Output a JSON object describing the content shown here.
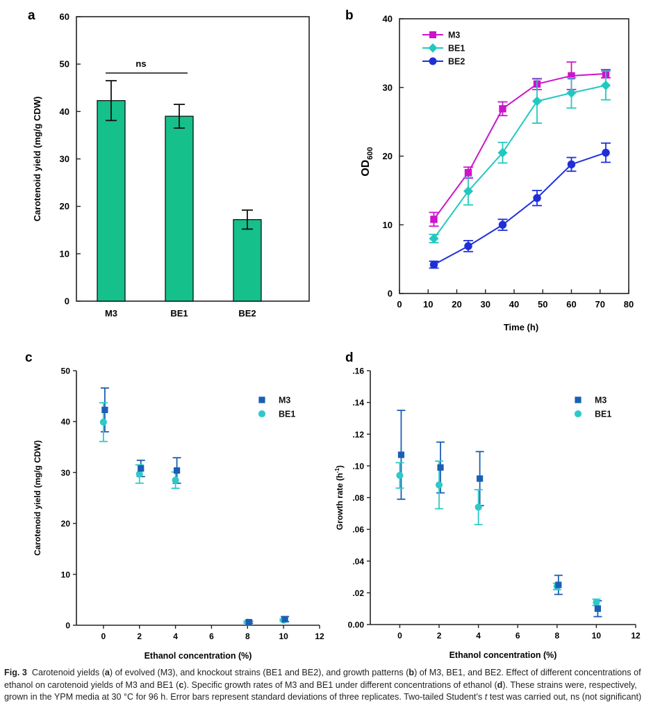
{
  "chart_data": [
    {
      "panel": "a",
      "type": "bar",
      "categories": [
        "M3",
        "BE1",
        "BE2"
      ],
      "values": [
        42.3,
        39.0,
        17.2
      ],
      "errors": [
        4.2,
        2.5,
        2.0
      ],
      "ylabel": "Carotenoid yield (mg/g CDW)",
      "ylim": [
        0,
        60
      ],
      "yticks": [
        "0",
        "10",
        "20",
        "30",
        "40",
        "50",
        "60"
      ],
      "bar_color": "#16c08a",
      "annotation": "ns"
    },
    {
      "panel": "b",
      "type": "line",
      "x": [
        12,
        24,
        36,
        48,
        60,
        72
      ],
      "series": [
        {
          "name": "M3",
          "marker": "square",
          "color": "#cc14cc",
          "values": [
            10.8,
            17.6,
            26.9,
            30.5,
            31.7,
            32.0
          ],
          "errors": [
            1.0,
            0.8,
            1.0,
            0.8,
            2.0,
            0.6
          ]
        },
        {
          "name": "BE1",
          "marker": "diamond",
          "color": "#22c8c0",
          "values": [
            8.0,
            14.9,
            20.5,
            28.0,
            29.2,
            30.3
          ],
          "errors": [
            0.6,
            2.0,
            1.5,
            3.2,
            2.2,
            2.1
          ]
        },
        {
          "name": "BE2",
          "marker": "circle",
          "color": "#1f2fd8",
          "values": [
            4.2,
            6.9,
            10.0,
            13.9,
            18.8,
            20.5
          ],
          "errors": [
            0.5,
            0.8,
            0.8,
            1.1,
            1.0,
            1.4
          ]
        }
      ],
      "xlabel": "Time (h)",
      "ylabel": "OD",
      "ylabel_sub": "600",
      "xlim": [
        0,
        80
      ],
      "ylim": [
        0,
        40
      ],
      "xticks": [
        "0",
        "10",
        "20",
        "30",
        "40",
        "50",
        "60",
        "70",
        "80"
      ],
      "yticks": [
        "0",
        "10",
        "20",
        "30",
        "40"
      ],
      "legend": "top-left"
    },
    {
      "panel": "c",
      "type": "scatter",
      "x": [
        0,
        2,
        4,
        8,
        10
      ],
      "series": [
        {
          "name": "M3",
          "marker": "square",
          "color": "#1a5fb4",
          "values": [
            42.3,
            30.8,
            30.4,
            0.6,
            1.2
          ],
          "errors": [
            4.3,
            1.6,
            2.5,
            0.2,
            0.5
          ]
        },
        {
          "name": "BE1",
          "marker": "circle",
          "color": "#2ec9c9",
          "values": [
            39.9,
            29.7,
            28.5,
            0.6,
            1.0
          ],
          "errors": [
            3.8,
            1.8,
            1.6,
            0.2,
            0.2
          ]
        }
      ],
      "xlabel": "Ethanol concentration (%)",
      "ylabel": "Carotenoid yield (mg/g CDW)",
      "xlim": [
        -1.5,
        12
      ],
      "ylim": [
        0,
        50
      ],
      "xticks": [
        "0",
        "2",
        "4",
        "6",
        "8",
        "10",
        "12"
      ],
      "yticks": [
        "0",
        "10",
        "20",
        "30",
        "40",
        "50"
      ],
      "legend": "top-right"
    },
    {
      "panel": "d",
      "type": "scatter",
      "x": [
        0,
        2,
        4,
        8,
        10
      ],
      "series": [
        {
          "name": "M3",
          "marker": "square",
          "color": "#1a5fb4",
          "values": [
            0.107,
            0.099,
            0.092,
            0.025,
            0.01
          ],
          "errors": [
            0.028,
            0.016,
            0.017,
            0.006,
            0.005
          ]
        },
        {
          "name": "BE1",
          "marker": "circle",
          "color": "#2ec9c9",
          "values": [
            0.094,
            0.088,
            0.074,
            0.024,
            0.014
          ],
          "errors": [
            0.008,
            0.015,
            0.011,
            0.002,
            0.002
          ]
        }
      ],
      "xlabel": "Ethanol concentration (%)",
      "ylabel": "Growth rate (h",
      "ylabel_sup": "-1",
      "ylabel_end": ")",
      "xlim": [
        -1.5,
        12
      ],
      "ylim": [
        0,
        0.16
      ],
      "xticks": [
        "0",
        "2",
        "4",
        "6",
        "8",
        "10",
        "12"
      ],
      "yticks": [
        "0.00",
        ".02",
        ".04",
        ".06",
        ".08",
        ".10",
        ".12",
        ".14",
        ".16"
      ],
      "legend": "top-right"
    }
  ],
  "panel_labels": [
    "a",
    "b",
    "c",
    "d"
  ],
  "caption": {
    "fig": "Fig. 3",
    "text_1": "Carotenoid yields (",
    "a": "a",
    "text_2": ") of evolved (M3), and knockout strains (BE1 and BE2), and growth patterns (",
    "b": "b",
    "text_3": ") of M3, BE1, and BE2. Effect of different concentrations of ethanol on carotenoid yields of M3 and BE1 (",
    "c": "c",
    "text_4": "). Specific growth rates of M3 and BE1 under different concentrations of ethanol (",
    "d": "d",
    "text_5": "). These strains were, respectively, grown in the YPM media at 30 °C for 96 h. Error bars represent standard deviations of three replicates. Two-tailed Student’s ",
    "t": "t",
    "text_6": " test was carried out, ns (not significant)"
  }
}
